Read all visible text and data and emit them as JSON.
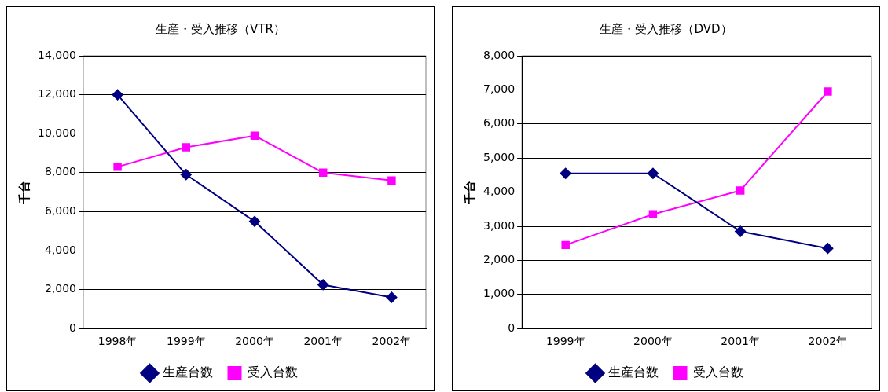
{
  "chart_data": [
    {
      "type": "line",
      "title": "生産・受入推移（VTR）",
      "ylabel": "千台",
      "categories": [
        "1998年",
        "1999年",
        "2000年",
        "2001年",
        "2002年"
      ],
      "series": [
        {
          "name": "生産台数",
          "color": "#000080",
          "marker": "diamond",
          "values": [
            12000,
            7900,
            5500,
            2250,
            1600
          ]
        },
        {
          "name": "受入台数",
          "color": "#ff00ff",
          "marker": "square",
          "values": [
            8300,
            9300,
            9900,
            8000,
            7600
          ]
        }
      ],
      "ylim": [
        0,
        14000
      ],
      "yticks": [
        {
          "value": 0,
          "label": "0"
        },
        {
          "value": 2000,
          "label": "2,000"
        },
        {
          "value": 4000,
          "label": "4,000"
        },
        {
          "value": 6000,
          "label": "6,000"
        },
        {
          "value": 8000,
          "label": "8,000"
        },
        {
          "value": 10000,
          "label": "10,000"
        },
        {
          "value": 12000,
          "label": "12,000"
        },
        {
          "value": 14000,
          "label": "14,000"
        }
      ],
      "grid": "y",
      "legend": "bottom"
    },
    {
      "type": "line",
      "title": "生産・受入推移（DVD）",
      "ylabel": "千台",
      "categories": [
        "1999年",
        "2000年",
        "2001年",
        "2002年"
      ],
      "series": [
        {
          "name": "生産台数",
          "color": "#000080",
          "marker": "diamond",
          "values": [
            4550,
            4550,
            2850,
            2350
          ]
        },
        {
          "name": "受入台数",
          "color": "#ff00ff",
          "marker": "square",
          "values": [
            2450,
            3350,
            4050,
            6950
          ]
        }
      ],
      "ylim": [
        0,
        8000
      ],
      "yticks": [
        {
          "value": 0,
          "label": "0"
        },
        {
          "value": 1000,
          "label": "1,000"
        },
        {
          "value": 2000,
          "label": "2,000"
        },
        {
          "value": 3000,
          "label": "3,000"
        },
        {
          "value": 4000,
          "label": "4,000"
        },
        {
          "value": 5000,
          "label": "5,000"
        },
        {
          "value": 6000,
          "label": "6,000"
        },
        {
          "value": 7000,
          "label": "7,000"
        },
        {
          "value": 8000,
          "label": "8,000"
        }
      ],
      "grid": "y",
      "legend": "bottom"
    }
  ]
}
